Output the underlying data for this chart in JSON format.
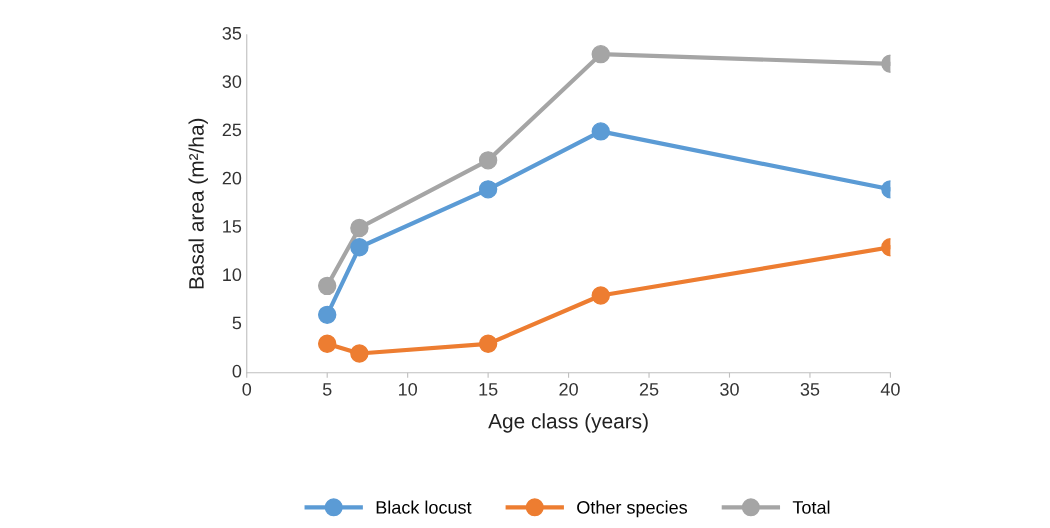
{
  "chart_data": {
    "type": "line",
    "xlabel": "Age class (years)",
    "ylabel": "Basal area (m²/ha)",
    "x": [
      5,
      7,
      15,
      22,
      40
    ],
    "series": [
      {
        "name": "Black locust",
        "color": "#5b9bd5",
        "values": [
          6,
          13,
          19,
          25,
          19
        ]
      },
      {
        "name": "Other species",
        "color": "#ed7d31",
        "values": [
          3,
          2,
          3,
          8,
          13
        ]
      },
      {
        "name": "Total",
        "color": "#a5a5a5",
        "values": [
          9,
          15,
          22,
          33,
          32
        ]
      }
    ],
    "xlim": [
      0,
      40
    ],
    "xticks": [
      0,
      5,
      10,
      15,
      20,
      25,
      30,
      35,
      40
    ],
    "ylim": [
      0,
      35
    ],
    "yticks": [
      0,
      5,
      10,
      15,
      20,
      25,
      30,
      35
    ],
    "grid": false,
    "legend": "bottom",
    "marker": "circle",
    "line_style": "solid"
  }
}
